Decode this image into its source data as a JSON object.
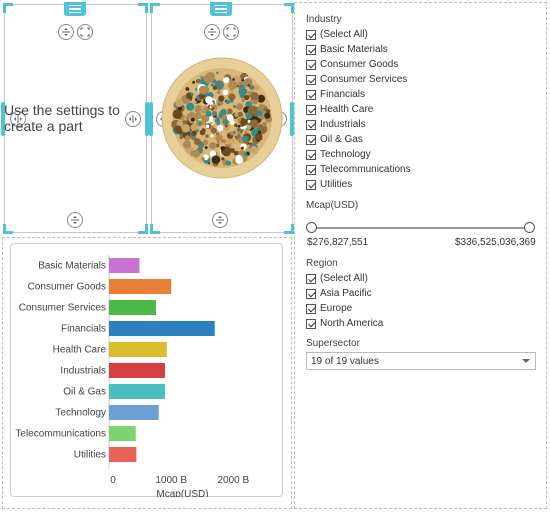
{
  "left_panel": {
    "placeholder": "Use the settings to create a part"
  },
  "icons": {
    "drag": "drag-handle-icon",
    "split_vertical": "split-vertical-icon",
    "expand": "expand-icon",
    "split_horizontal": "split-horizontal-icon"
  },
  "filters": {
    "industry": {
      "title": "Industry",
      "items": [
        {
          "label": "(Select All)",
          "checked": true
        },
        {
          "label": "Basic Materials",
          "checked": true
        },
        {
          "label": "Consumer Goods",
          "checked": true
        },
        {
          "label": "Consumer Services",
          "checked": true
        },
        {
          "label": "Financials",
          "checked": true
        },
        {
          "label": "Health Care",
          "checked": true
        },
        {
          "label": "Industrials",
          "checked": true
        },
        {
          "label": "Oil & Gas",
          "checked": true
        },
        {
          "label": "Technology",
          "checked": true
        },
        {
          "label": "Telecommunications",
          "checked": true
        },
        {
          "label": "Utilities",
          "checked": true
        }
      ]
    },
    "mcap": {
      "title": "Mcap(USD)",
      "min_label": "$276,827,551",
      "max_label": "$336,525,036,369"
    },
    "region": {
      "title": "Region",
      "items": [
        {
          "label": "(Select All)",
          "checked": true
        },
        {
          "label": "Asia Pacific",
          "checked": true
        },
        {
          "label": "Europe",
          "checked": true
        },
        {
          "label": "North America",
          "checked": true
        }
      ]
    },
    "supersector": {
      "title": "Supersector",
      "value": "19 of 19 values"
    }
  },
  "colors": {
    "accent": "#4fc3d5"
  },
  "chart_data": {
    "type": "bar",
    "orientation": "horizontal",
    "categories": [
      "Basic Materials",
      "Consumer Goods",
      "Consumer Services",
      "Financials",
      "Health Care",
      "Industrials",
      "Oil & Gas",
      "Technology",
      "Telecommunications",
      "Utilities"
    ],
    "values": [
      490,
      1000,
      755,
      1700,
      930,
      900,
      900,
      800,
      430,
      440
    ],
    "colors": [
      "#c873d4",
      "#e9803a",
      "#4bb847",
      "#2e7fbd",
      "#d9be2b",
      "#d43f3f",
      "#4bbfbf",
      "#6c9fd4",
      "#7ed36f",
      "#e86258"
    ],
    "x_ticks": [
      "0",
      "1000 B",
      "2000 B"
    ],
    "x_tick_values": [
      0,
      1000,
      2000
    ],
    "xlim": [
      0,
      2750
    ],
    "xlabel": "Mcap(USD)",
    "unit": "B USD"
  }
}
